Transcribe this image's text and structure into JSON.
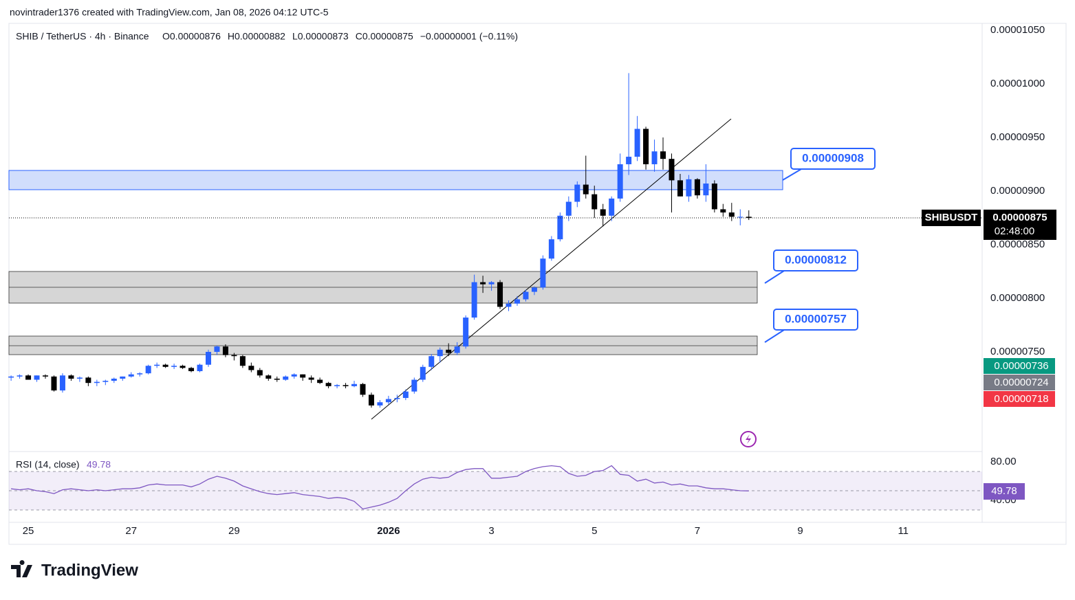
{
  "header": {
    "credit": "novintrader1376 created with TradingView.com, Jan 08, 2026 04:12 UTC-5",
    "brand": "TradingView"
  },
  "legend": {
    "symbol": "SHIB / TetherUS · 4h · Binance",
    "ohlc": [
      {
        "k": "O",
        "v": "0.00000876"
      },
      {
        "k": "H",
        "v": "0.00000882"
      },
      {
        "k": "L",
        "v": "0.00000873"
      },
      {
        "k": "C",
        "v": "0.00000875"
      }
    ],
    "change": "−0.00000001 (−0.11%)"
  },
  "annotations": [
    "0.00000908",
    "0.00000812",
    "0.00000757"
  ],
  "price_tags": {
    "symbol": "SHIBUSDT",
    "last": "0.00000875",
    "countdown": "02:48:00",
    "others": [
      "0.00000736",
      "0.00000724",
      "0.00000718"
    ]
  },
  "chart_data": [
    {
      "type": "candlestick",
      "up_color": "#2962ff",
      "down_color": "#000000",
      "xlim": [
        -0.25,
        113.2
      ],
      "ylim": [
        6.583e-06,
        1.0564e-05
      ],
      "xticks": [
        {
          "value": 2,
          "label": "25"
        },
        {
          "value": 14,
          "label": "27"
        },
        {
          "value": 26,
          "label": "29"
        },
        {
          "value": 44,
          "label": "2026"
        },
        {
          "value": 56,
          "label": "3"
        },
        {
          "value": 68,
          "label": "5"
        },
        {
          "value": 80,
          "label": "7"
        },
        {
          "value": 92,
          "label": "9"
        },
        {
          "value": 104,
          "label": "11"
        }
      ],
      "yticks": [
        {
          "value": 1.05e-05,
          "label": "0.00001050"
        },
        {
          "value": 1e-05,
          "label": "0.00001000"
        },
        {
          "value": 9.5e-06,
          "label": "0.00000950"
        },
        {
          "value": 9e-06,
          "label": "0.00000900"
        },
        {
          "value": 8.5e-06,
          "label": "0.00000850"
        },
        {
          "value": 8e-06,
          "label": "0.00000800"
        },
        {
          "value": 7.5e-06,
          "label": "0.00000750"
        }
      ],
      "open": [
        7.26e-06,
        7.27e-06,
        7.28e-06,
        7.24e-06,
        7.28e-06,
        7.27e-06,
        7.14e-06,
        7.28e-06,
        7.25e-06,
        7.26e-06,
        7.21e-06,
        7.22e-06,
        7.23e-06,
        7.25e-06,
        7.27e-06,
        7.29e-06,
        7.3e-06,
        7.37e-06,
        7.38e-06,
        7.36e-06,
        7.37e-06,
        7.35e-06,
        7.32e-06,
        7.38e-06,
        7.5e-06,
        7.55e-06,
        7.47e-06,
        7.46e-06,
        7.37e-06,
        7.33e-06,
        7.28e-06,
        7.25e-06,
        7.24e-06,
        7.27e-06,
        7.29e-06,
        7.26e-06,
        7.24e-06,
        7.21e-06,
        7.18e-06,
        7.19e-06,
        7.18e-06,
        7.2e-06,
        7.1e-06,
        7e-06,
        7.03e-06,
        7.06e-06,
        7.07e-06,
        7.13e-06,
        7.24e-06,
        7.36e-06,
        7.46e-06,
        7.52e-06,
        7.49e-06,
        7.55e-06,
        7.82e-06,
        8.15e-06,
        8.13e-06,
        8.15e-06,
        7.92e-06,
        7.95e-06,
        7.99e-06,
        8.06e-06,
        8.1e-06,
        8.37e-06,
        8.55e-06,
        8.77e-06,
        8.9e-06,
        9.06e-06,
        8.97e-06,
        8.83e-06,
        8.77e-06,
        8.93e-06,
        9.25e-06,
        9.32e-06,
        9.58e-06,
        9.25e-06,
        9.37e-06,
        9.3e-06,
        9.1e-06,
        8.95e-06,
        9.11e-06,
        8.96e-06,
        9.07e-06,
        8.83e-06,
        8.8e-06,
        8.76e-06,
        8.76e-06
      ],
      "high": [
        7.28e-06,
        7.29e-06,
        7.29e-06,
        7.28e-06,
        7.29e-06,
        7.28e-06,
        7.3e-06,
        7.29e-06,
        7.27e-06,
        7.27e-06,
        7.24e-06,
        7.24e-06,
        7.26e-06,
        7.27e-06,
        7.31e-06,
        7.31e-06,
        7.38e-06,
        7.4e-06,
        7.39e-06,
        7.39e-06,
        7.38e-06,
        7.36e-06,
        7.39e-06,
        7.52e-06,
        7.56e-06,
        7.57e-06,
        7.49e-06,
        7.47e-06,
        7.4e-06,
        7.35e-06,
        7.29e-06,
        7.27e-06,
        7.28e-06,
        7.3e-06,
        7.29e-06,
        7.28e-06,
        7.26e-06,
        7.22e-06,
        7.2e-06,
        7.21e-06,
        7.23e-06,
        7.21e-06,
        7.12e-06,
        7.05e-06,
        7.09e-06,
        7.1e-06,
        7.15e-06,
        7.26e-06,
        7.38e-06,
        7.48e-06,
        7.54e-06,
        7.58e-06,
        7.59e-06,
        7.84e-06,
        8.22e-06,
        8.21e-06,
        8.16e-06,
        8.17e-06,
        7.98e-06,
        8.02e-06,
        8.08e-06,
        8.11e-06,
        8.4e-06,
        8.58e-06,
        8.8e-06,
        8.95e-06,
        9.09e-06,
        9.33e-06,
        9.05e-06,
        8.88e-06,
        8.95e-06,
        9.35e-06,
        1.01e-05,
        9.7e-06,
        9.6e-06,
        9.48e-06,
        9.5e-06,
        9.35e-06,
        9.16e-06,
        9.15e-06,
        9.12e-06,
        9.25e-06,
        9.1e-06,
        8.88e-06,
        8.89e-06,
        8.83e-06,
        8.82e-06
      ],
      "low": [
        7.23e-06,
        7.25e-06,
        7.24e-06,
        7.22e-06,
        7.25e-06,
        7.13e-06,
        7.12e-06,
        7.23e-06,
        7.22e-06,
        7.18e-06,
        7.18e-06,
        7.19e-06,
        7.21e-06,
        7.23e-06,
        7.26e-06,
        7.27e-06,
        7.29e-06,
        7.35e-06,
        7.35e-06,
        7.34e-06,
        7.34e-06,
        7.31e-06,
        7.31e-06,
        7.36e-06,
        7.47e-06,
        7.45e-06,
        7.42e-06,
        7.35e-06,
        7.31e-06,
        7.26e-06,
        7.23e-06,
        7.22e-06,
        7.23e-06,
        7.25e-06,
        7.23e-06,
        7.21e-06,
        7.2e-06,
        7.16e-06,
        7.16e-06,
        7.16e-06,
        7.17e-06,
        7.08e-06,
        6.98e-06,
        6.98e-06,
        7.01e-06,
        7.03e-06,
        7.05e-06,
        7.11e-06,
        7.22e-06,
        7.33e-06,
        7.4e-06,
        7.46e-06,
        7.47e-06,
        7.53e-06,
        7.8e-06,
        8.05e-06,
        8.07e-06,
        7.9e-06,
        7.88e-06,
        7.93e-06,
        7.97e-06,
        8.03e-06,
        8.08e-06,
        8.35e-06,
        8.53e-06,
        8.72e-06,
        8.85e-06,
        8.93e-06,
        8.75e-06,
        8.67e-06,
        8.72e-06,
        8.9e-06,
        9.15e-06,
        9.28e-06,
        9.2e-06,
        9.18e-06,
        9.2e-06,
        8.8e-06,
        8.95e-06,
        8.9e-06,
        8.93e-06,
        8.9e-06,
        8.8e-06,
        8.76e-06,
        8.72e-06,
        8.68e-06,
        8.73e-06
      ],
      "close": [
        7.27e-06,
        7.28e-06,
        7.24e-06,
        7.28e-06,
        7.27e-06,
        7.14e-06,
        7.28e-06,
        7.25e-06,
        7.26e-06,
        7.21e-06,
        7.22e-06,
        7.23e-06,
        7.25e-06,
        7.27e-06,
        7.29e-06,
        7.3e-06,
        7.37e-06,
        7.38e-06,
        7.36e-06,
        7.37e-06,
        7.35e-06,
        7.32e-06,
        7.38e-06,
        7.5e-06,
        7.55e-06,
        7.47e-06,
        7.46e-06,
        7.37e-06,
        7.33e-06,
        7.28e-06,
        7.25e-06,
        7.24e-06,
        7.27e-06,
        7.29e-06,
        7.26e-06,
        7.24e-06,
        7.21e-06,
        7.18e-06,
        7.19e-06,
        7.18e-06,
        7.2e-06,
        7.1e-06,
        7e-06,
        7.03e-06,
        7.06e-06,
        7.07e-06,
        7.13e-06,
        7.24e-06,
        7.36e-06,
        7.46e-06,
        7.52e-06,
        7.49e-06,
        7.55e-06,
        7.82e-06,
        8.15e-06,
        8.13e-06,
        8.15e-06,
        7.92e-06,
        7.95e-06,
        7.99e-06,
        8.06e-06,
        8.1e-06,
        8.37e-06,
        8.55e-06,
        8.77e-06,
        8.9e-06,
        9.06e-06,
        8.97e-06,
        8.83e-06,
        8.77e-06,
        8.93e-06,
        9.25e-06,
        9.32e-06,
        9.58e-06,
        9.25e-06,
        9.37e-06,
        9.3e-06,
        9.1e-06,
        8.95e-06,
        9.11e-06,
        8.96e-06,
        9.07e-06,
        8.83e-06,
        8.8e-06,
        8.76e-06,
        8.76e-06,
        8.75e-06
      ]
    },
    {
      "type": "line",
      "title": "RSI (14, close)",
      "value_label": "49.78",
      "color": "#7e57c2",
      "xlim": [
        -0.25,
        113.2
      ],
      "ylim": [
        18.6,
        90.7
      ],
      "yticks": [
        {
          "value": 80,
          "label": "80.00"
        },
        {
          "value": 40,
          "label": "40.00"
        }
      ],
      "bands": [
        70,
        50,
        30
      ],
      "values": [
        52,
        51,
        52,
        50,
        49,
        47,
        51,
        52,
        51,
        50,
        51,
        50,
        51,
        52,
        52,
        53,
        56,
        57,
        56,
        56,
        56,
        54,
        57,
        62,
        65,
        63,
        60,
        55,
        52,
        49,
        47,
        46,
        47,
        48,
        46,
        45,
        44,
        42,
        43,
        42,
        39,
        31,
        33,
        35,
        38,
        42,
        50,
        57,
        62,
        64,
        63,
        64,
        69,
        72,
        73,
        73,
        63,
        63,
        64,
        65,
        70,
        73,
        75,
        76,
        75,
        68,
        65,
        66,
        70,
        71,
        76,
        67,
        66,
        60,
        62,
        58,
        59,
        56,
        57,
        55,
        55,
        53,
        52,
        52,
        51,
        50,
        49.78
      ]
    }
  ]
}
